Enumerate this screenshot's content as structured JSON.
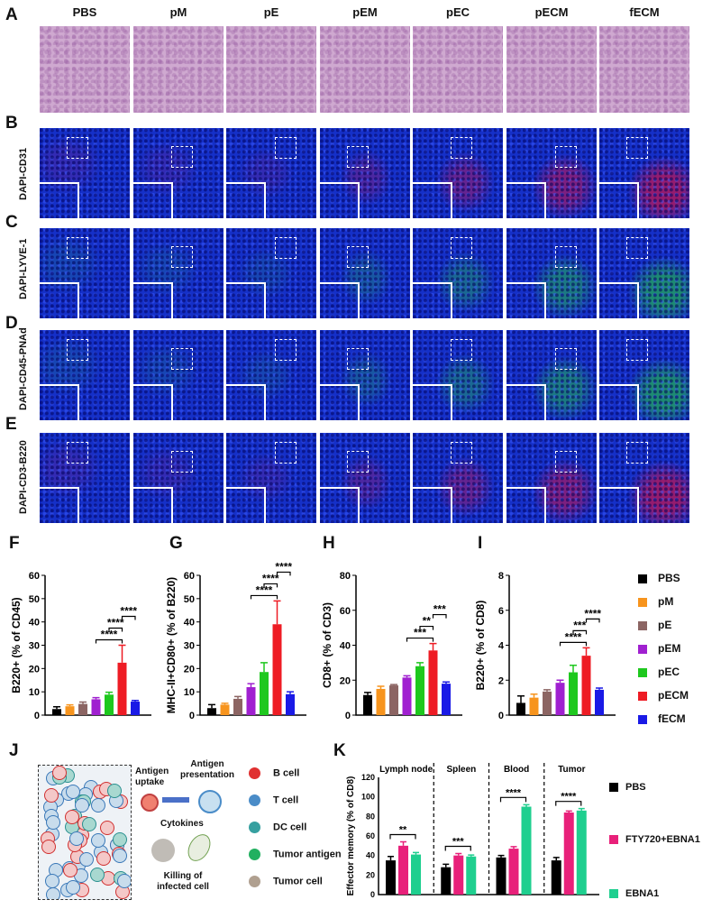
{
  "panel_letters": {
    "A": "A",
    "B": "B",
    "C": "C",
    "D": "D",
    "E": "E",
    "F": "F",
    "G": "G",
    "H": "H",
    "I": "I",
    "J": "J",
    "K": "K"
  },
  "columns": [
    "PBS",
    "pM",
    "pE",
    "pEM",
    "pEC",
    "pECM",
    "fECM"
  ],
  "row_labels": {
    "B": "DAPI-CD31",
    "C": "DAPI-LYVE-1",
    "D": "DAPI-CD45-PNAd",
    "E": "DAPI-CD3-B220"
  },
  "row_colors": {
    "B": "#e0103a",
    "C": "#22c040",
    "D": "#22c040",
    "E": "#e0103a"
  },
  "groups": [
    {
      "name": "PBS",
      "color": "#000000"
    },
    {
      "name": "pM",
      "color": "#f7941d"
    },
    {
      "name": "pE",
      "color": "#8c6563"
    },
    {
      "name": "pEM",
      "color": "#a020d0"
    },
    {
      "name": "pEC",
      "color": "#1ec81e"
    },
    {
      "name": "pECM",
      "color": "#ee1c24"
    },
    {
      "name": "fECM",
      "color": "#1a1ae6"
    }
  ],
  "chart_data": [
    {
      "type": "bar",
      "panel": "F",
      "ylabel": "B220+ (% of CD45)",
      "ylim": [
        0,
        60
      ],
      "yticks": [
        0,
        10,
        20,
        30,
        40,
        50,
        60
      ],
      "categories": [
        "PBS",
        "pM",
        "pE",
        "pEM",
        "pEC",
        "pECM",
        "fECM"
      ],
      "values": [
        2.6,
        3.8,
        4.8,
        6.8,
        8.8,
        22.5,
        5.8
      ],
      "errors": [
        1,
        0.6,
        0.8,
        0.7,
        1,
        7.5,
        0.5
      ],
      "annotations": [
        "****",
        "****",
        "****"
      ]
    },
    {
      "type": "bar",
      "panel": "G",
      "ylabel": "MHC-II+CD80+ (% of B220)",
      "ylim": [
        0,
        60
      ],
      "yticks": [
        0,
        10,
        20,
        30,
        40,
        50,
        60
      ],
      "categories": [
        "PBS",
        "pM",
        "pE",
        "pEM",
        "pEC",
        "pECM",
        "fECM"
      ],
      "values": [
        3,
        4.5,
        7,
        12,
        18.5,
        39,
        9
      ],
      "errors": [
        1.5,
        0.6,
        1,
        1.5,
        4,
        10,
        1
      ],
      "annotations": [
        "****",
        "****",
        "****"
      ]
    },
    {
      "type": "bar",
      "panel": "H",
      "ylabel": "CD8+ (% of CD3)",
      "ylim": [
        0,
        80
      ],
      "yticks": [
        0,
        20,
        40,
        60,
        80
      ],
      "categories": [
        "PBS",
        "pM",
        "pE",
        "pEM",
        "pEC",
        "pECM",
        "fECM"
      ],
      "values": [
        11.5,
        15,
        17,
        21.5,
        28,
        37,
        18
      ],
      "errors": [
        1.5,
        1.5,
        0.5,
        1,
        2,
        4,
        1
      ],
      "annotations": [
        "***",
        "**",
        "***"
      ]
    },
    {
      "type": "bar",
      "panel": "I",
      "ylabel": "B220+ (% of CD8)",
      "ylim": [
        0,
        8
      ],
      "yticks": [
        0,
        2,
        4,
        6,
        8
      ],
      "categories": [
        "PBS",
        "pM",
        "pE",
        "pEM",
        "pEC",
        "pECM",
        "fECM"
      ],
      "values": [
        0.7,
        1,
        1.35,
        1.85,
        2.45,
        3.4,
        1.45
      ],
      "errors": [
        0.4,
        0.2,
        0.1,
        0.15,
        0.4,
        0.45,
        0.1
      ],
      "annotations": [
        "****",
        "***",
        "****"
      ]
    },
    {
      "type": "bar",
      "panel": "K",
      "ylabel": "Effector memory (% of CD8)",
      "ylim": [
        0,
        120
      ],
      "yticks": [
        0,
        20,
        40,
        60,
        80,
        100,
        120
      ],
      "categories": [
        "Lymph node",
        "Spleen",
        "Blood",
        "Tumor"
      ],
      "series": [
        {
          "name": "PBS",
          "color": "#000000",
          "values": [
            35,
            28,
            38,
            35
          ],
          "errors": [
            4,
            3,
            2,
            3
          ]
        },
        {
          "name": "FTY720+EBNA1",
          "color": "#e8207a",
          "values": [
            50,
            40,
            47,
            84
          ],
          "errors": [
            4,
            2,
            2,
            1.5
          ]
        },
        {
          "name": "EBNA1",
          "color": "#1fcf8f",
          "values": [
            41,
            39,
            90,
            86
          ],
          "errors": [
            2,
            1.5,
            2,
            2
          ]
        }
      ],
      "annotations": [
        "**",
        "***",
        "****",
        "****"
      ]
    }
  ],
  "schematic": {
    "labels": {
      "uptake": "Antigen uptake",
      "presentation": "Antigen presentation",
      "cytokines": "Cytokines",
      "killing": "Killing of infected cell"
    },
    "legend": [
      {
        "label": "B cell",
        "color": "#e03030"
      },
      {
        "label": "T cell",
        "color": "#4a8cc8"
      },
      {
        "label": "DC cell",
        "color": "#36a0a0"
      },
      {
        "label": "Tumor antigen",
        "color": "#22b060"
      },
      {
        "label": "Tumor cell",
        "color": "#b0a090"
      }
    ]
  }
}
